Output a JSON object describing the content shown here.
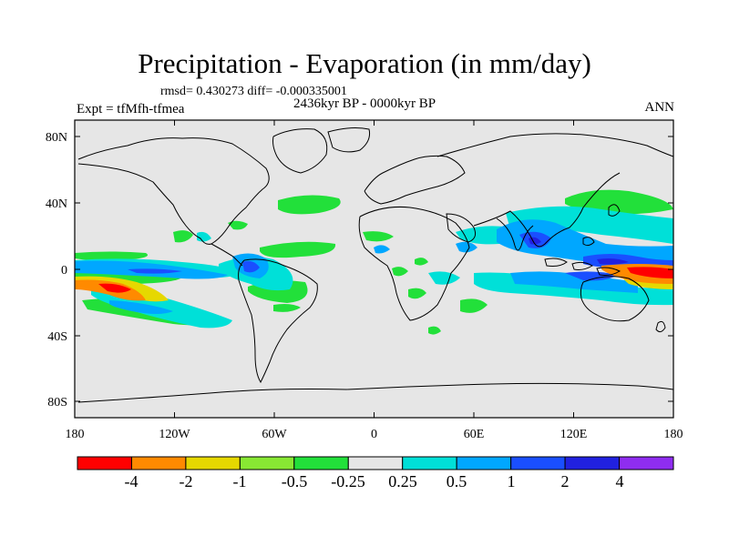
{
  "title": "Precipitation - Evaporation (in mm/day)",
  "stats": "rmsd= 0.430273 diff= -0.000335001",
  "period": "2436kyr BP - 0000kyr BP",
  "experiment": "Expt = tfMfh-tfmea",
  "season": "ANN",
  "lon_ticks": [
    "180",
    "120W",
    "60W",
    "0",
    "60E",
    "120E",
    "180"
  ],
  "lat_ticks": [
    "80N",
    "40N",
    "0",
    "40S",
    "80S"
  ],
  "colorbar": {
    "labels": [
      "-4",
      "-2",
      "-1",
      "-0.5",
      "-0.25",
      "0.25",
      "0.5",
      "1",
      "2",
      "4"
    ],
    "colors": [
      "#ff0000",
      "#ff8a00",
      "#e6d800",
      "#88e833",
      "#22e03a",
      "#e6e6e6",
      "#00e0d8",
      "#00a7ff",
      "#1a4fff",
      "#2121e0",
      "#8f2df0"
    ]
  },
  "colors": {
    "background": "#e6e6e6",
    "coast": "#000000"
  }
}
